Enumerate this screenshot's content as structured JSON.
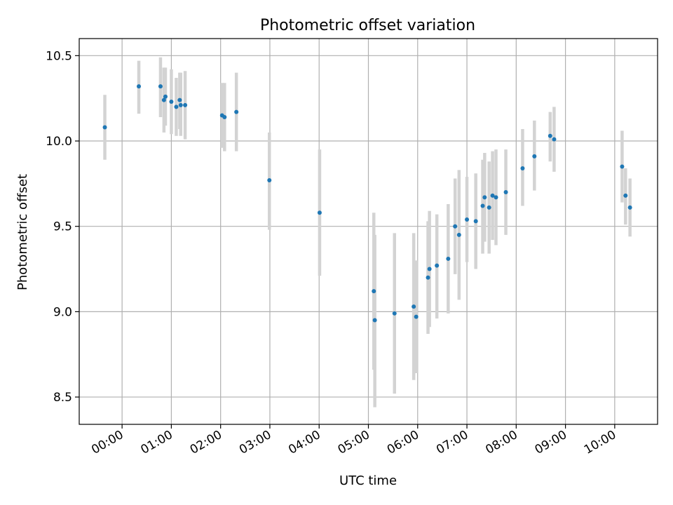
{
  "chart_data": {
    "type": "scatter",
    "title": "Photometric offset variation",
    "xlabel": "UTC time",
    "ylabel": "Photometric offset",
    "xlim": [
      -0.87,
      10.87
    ],
    "ylim": [
      8.34,
      10.6
    ],
    "x_ticks": [
      {
        "value": 0,
        "label": "00:00"
      },
      {
        "value": 1,
        "label": "01:00"
      },
      {
        "value": 2,
        "label": "02:00"
      },
      {
        "value": 3,
        "label": "03:00"
      },
      {
        "value": 4,
        "label": "04:00"
      },
      {
        "value": 5,
        "label": "05:00"
      },
      {
        "value": 6,
        "label": "06:00"
      },
      {
        "value": 7,
        "label": "07:00"
      },
      {
        "value": 8,
        "label": "08:00"
      },
      {
        "value": 9,
        "label": "09:00"
      },
      {
        "value": 10,
        "label": "10:00"
      }
    ],
    "y_ticks": [
      {
        "value": 8.5,
        "label": "8.5"
      },
      {
        "value": 9.0,
        "label": "9.0"
      },
      {
        "value": 9.5,
        "label": "9.5"
      },
      {
        "value": 10.0,
        "label": "10.0"
      },
      {
        "value": 10.5,
        "label": "10.5"
      }
    ],
    "grid": true,
    "point_color": "#1f77b4",
    "errorbar_color": "#d3d3d3",
    "points": [
      {
        "x": -0.35,
        "y": 10.08,
        "low": 9.89,
        "high": 10.27
      },
      {
        "x": 0.34,
        "y": 10.32,
        "low": 10.16,
        "high": 10.47
      },
      {
        "x": 0.78,
        "y": 10.32,
        "low": 10.14,
        "high": 10.49
      },
      {
        "x": 0.85,
        "y": 10.24,
        "low": 10.05,
        "high": 10.43
      },
      {
        "x": 0.88,
        "y": 10.26,
        "low": 10.09,
        "high": 10.43
      },
      {
        "x": 1.0,
        "y": 10.23,
        "low": 10.04,
        "high": 10.42
      },
      {
        "x": 1.1,
        "y": 10.2,
        "low": 10.03,
        "high": 10.37
      },
      {
        "x": 1.17,
        "y": 10.24,
        "low": 10.07,
        "high": 10.4
      },
      {
        "x": 1.19,
        "y": 10.21,
        "low": 10.03,
        "high": 10.4
      },
      {
        "x": 1.28,
        "y": 10.21,
        "low": 10.01,
        "high": 10.41
      },
      {
        "x": 2.03,
        "y": 10.15,
        "low": 9.96,
        "high": 10.34
      },
      {
        "x": 2.08,
        "y": 10.14,
        "low": 9.94,
        "high": 10.34
      },
      {
        "x": 2.32,
        "y": 10.17,
        "low": 9.94,
        "high": 10.4
      },
      {
        "x": 2.99,
        "y": 9.77,
        "low": 9.48,
        "high": 10.05
      },
      {
        "x": 4.01,
        "y": 9.58,
        "low": 9.21,
        "high": 9.95
      },
      {
        "x": 5.11,
        "y": 9.12,
        "low": 8.66,
        "high": 9.58
      },
      {
        "x": 5.13,
        "y": 8.95,
        "low": 8.44,
        "high": 9.45
      },
      {
        "x": 5.53,
        "y": 8.99,
        "low": 8.52,
        "high": 9.46
      },
      {
        "x": 5.92,
        "y": 9.03,
        "low": 8.6,
        "high": 9.46
      },
      {
        "x": 5.97,
        "y": 8.97,
        "low": 8.64,
        "high": 9.3
      },
      {
        "x": 6.21,
        "y": 9.2,
        "low": 8.87,
        "high": 9.53
      },
      {
        "x": 6.24,
        "y": 9.25,
        "low": 8.91,
        "high": 9.59
      },
      {
        "x": 6.39,
        "y": 9.27,
        "low": 8.96,
        "high": 9.57
      },
      {
        "x": 6.62,
        "y": 9.31,
        "low": 8.99,
        "high": 9.63
      },
      {
        "x": 6.76,
        "y": 9.5,
        "low": 9.22,
        "high": 9.78
      },
      {
        "x": 6.84,
        "y": 9.45,
        "low": 9.07,
        "high": 9.83
      },
      {
        "x": 7.0,
        "y": 9.54,
        "low": 9.29,
        "high": 9.79
      },
      {
        "x": 7.18,
        "y": 9.53,
        "low": 9.25,
        "high": 9.81
      },
      {
        "x": 7.32,
        "y": 9.62,
        "low": 9.34,
        "high": 9.89
      },
      {
        "x": 7.36,
        "y": 9.67,
        "low": 9.41,
        "high": 9.93
      },
      {
        "x": 7.45,
        "y": 9.61,
        "low": 9.34,
        "high": 9.88
      },
      {
        "x": 7.52,
        "y": 9.68,
        "low": 9.42,
        "high": 9.94
      },
      {
        "x": 7.59,
        "y": 9.67,
        "low": 9.39,
        "high": 9.95
      },
      {
        "x": 7.79,
        "y": 9.7,
        "low": 9.45,
        "high": 9.95
      },
      {
        "x": 8.13,
        "y": 9.84,
        "low": 9.62,
        "high": 10.07
      },
      {
        "x": 8.37,
        "y": 9.91,
        "low": 9.71,
        "high": 10.12
      },
      {
        "x": 8.69,
        "y": 10.03,
        "low": 9.88,
        "high": 10.17
      },
      {
        "x": 8.77,
        "y": 10.01,
        "low": 9.82,
        "high": 10.2
      },
      {
        "x": 10.15,
        "y": 9.85,
        "low": 9.64,
        "high": 10.06
      },
      {
        "x": 10.22,
        "y": 9.68,
        "low": 9.51,
        "high": 9.84
      },
      {
        "x": 10.31,
        "y": 9.61,
        "low": 9.44,
        "high": 9.78
      }
    ]
  }
}
